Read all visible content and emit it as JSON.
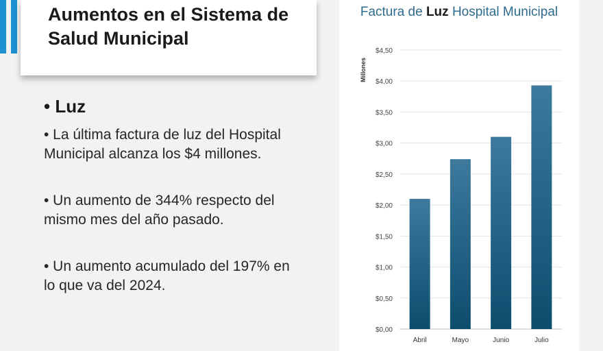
{
  "slide": {
    "title": "Aumentos en el Sistema de Salud Municipal",
    "heading": "• Luz",
    "points": [
      "• La última factura de luz del Hospital Municipal alcanza los $4 millones.",
      "• Un aumento de 344% respecto del mismo mes del año pasado.",
      "• Un aumento acumulado del 197% en lo que va del 2024."
    ]
  },
  "colors": {
    "accent": "#1e8fd0",
    "bar_top": "#3d7a9e",
    "bar_bottom": "#0c4d6e",
    "title": "#2d6b8e"
  },
  "chart_data": {
    "type": "bar",
    "title_parts": [
      "Factura de ",
      "Luz",
      " Hospital Municipal"
    ],
    "ylabel": "Millones",
    "xlabel": "",
    "categories": [
      "Abril",
      "Mayo",
      "Junio",
      "Julio"
    ],
    "values": [
      2.1,
      2.74,
      3.1,
      3.93
    ],
    "ylim": [
      0,
      4.5
    ],
    "ytick_step": 0.5,
    "ytick_labels": [
      "$0,00",
      "$0,50",
      "$1,00",
      "$1,50",
      "$2,00",
      "$2,50",
      "$3,00",
      "$3,50",
      "$4,00",
      "$4,50"
    ],
    "grid": true,
    "legend": "none"
  }
}
